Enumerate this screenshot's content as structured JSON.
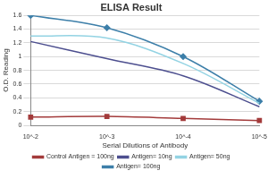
{
  "chart_data": {
    "type": "line",
    "title": "ELISA Result",
    "x_label": "Serial Dilutions of Antibody",
    "y_label": "O.D. Reading",
    "categories": [
      "10^-2",
      "10^-3",
      "10^-4",
      "10^-5"
    ],
    "series": [
      {
        "name": "Control Antigen = 100ng",
        "color": "#a33b3b",
        "marker": "square",
        "values": [
          0.12,
          0.13,
          0.1,
          0.07
        ]
      },
      {
        "name": "Antigen= 10ng",
        "color": "#4d4f8f",
        "marker": "none",
        "values": [
          1.22,
          0.97,
          0.72,
          0.27
        ]
      },
      {
        "name": "Antigen= 50ng",
        "color": "#93d3e3",
        "marker": "none",
        "values": [
          1.3,
          1.27,
          0.9,
          0.32
        ]
      },
      {
        "name": "Antigen= 100ng",
        "color": "#3d7fa9",
        "marker": "diamond",
        "values": [
          1.6,
          1.42,
          1.0,
          0.35
        ]
      }
    ],
    "ylim": [
      0,
      1.6
    ],
    "yticks": [
      0,
      0.2,
      0.4,
      0.6,
      0.8,
      1,
      1.2,
      1.4,
      1.6
    ],
    "grid": true,
    "legend": "bottom"
  }
}
